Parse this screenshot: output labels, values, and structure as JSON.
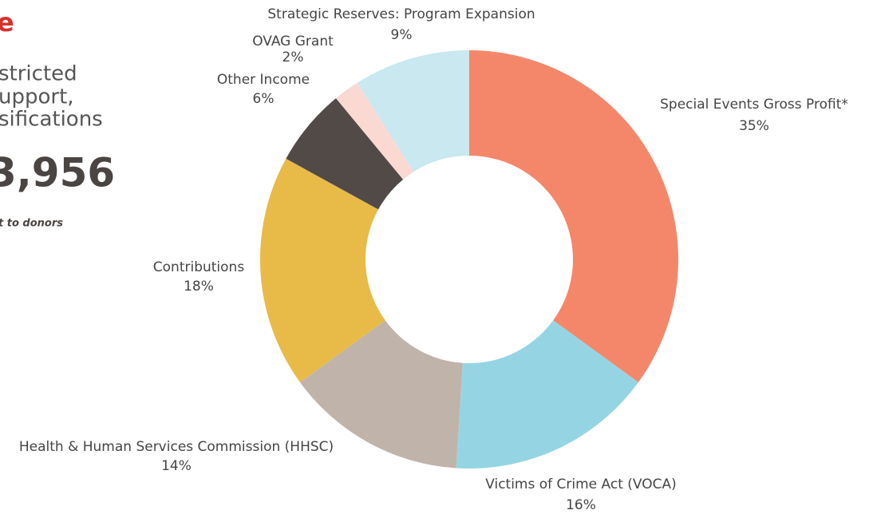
{
  "chart_data": {
    "type": "pie",
    "donut": true,
    "categories": [
      "Special Events Gross Profit*",
      "Victims of Crime Act (VOCA)",
      "Health & Human Services Commission (HHSC)",
      "Contributions",
      "Other Income",
      "OVAG Grant",
      "Strategic Reserves: Program Expansion"
    ],
    "values": [
      35,
      16,
      14,
      18,
      6,
      2,
      9
    ],
    "value_labels": [
      "35%",
      "16%",
      "14%",
      "18%",
      "6%",
      "2%",
      "9%"
    ],
    "colors": [
      "#f4876a",
      "#95d5e3",
      "#c0b3aa",
      "#e8ba48",
      "#524a46",
      "#fbd9d3",
      "#c9e8f0"
    ]
  },
  "sidebar": {
    "heading": "e",
    "lines": [
      "stricted",
      "upport,",
      "sifications"
    ],
    "amount": "3,956",
    "note": "t to donors"
  }
}
